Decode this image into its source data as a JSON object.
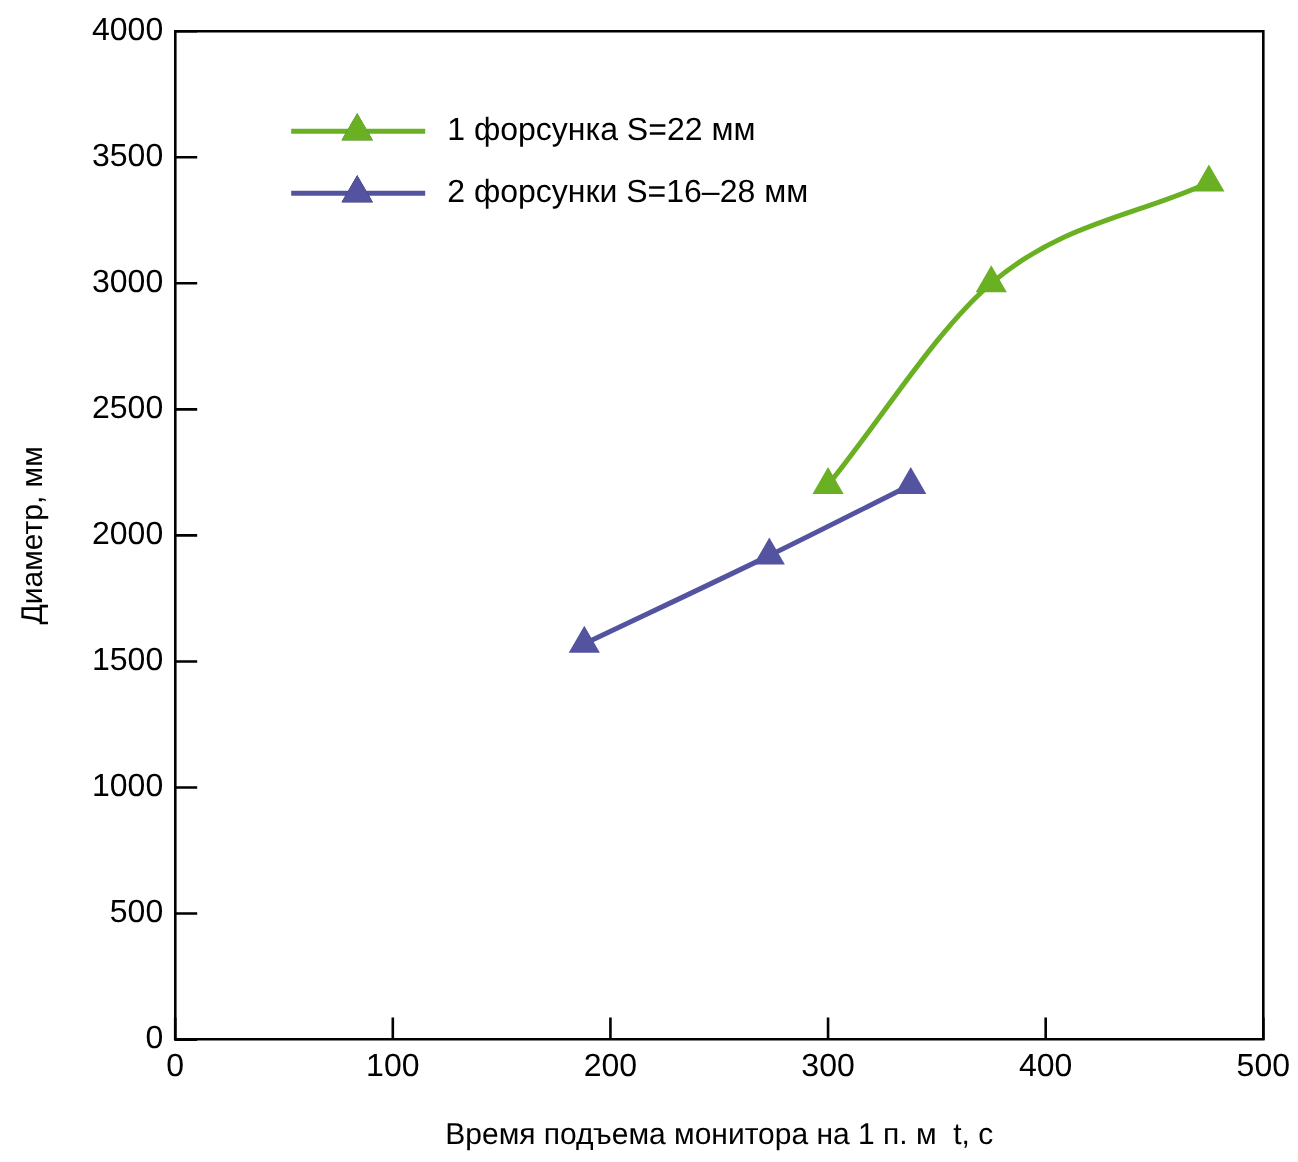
{
  "chart_data": {
    "type": "line",
    "xlabel": "Время подъема монитора на 1 п. м  t, с",
    "ylabel": "Диаметр, мм",
    "xlim": [
      0,
      500
    ],
    "xticks": [
      0,
      100,
      200,
      300,
      400,
      500
    ],
    "ylim": [
      0,
      4000
    ],
    "yticks": [
      0,
      500,
      1000,
      1500,
      2000,
      2500,
      3000,
      3500,
      4000
    ],
    "grid": false,
    "legend": "top left",
    "marker": "triangle",
    "line_style": "solid",
    "series": [
      {
        "name": "1 форсунка S=22 мм",
        "color": "#6ab023",
        "x": [
          300,
          375,
          475
        ],
        "values": [
          2200,
          3000,
          3400
        ]
      },
      {
        "name": "2 форсунки S=16–28 мм",
        "color": "#5353a0",
        "x": [
          188,
          273,
          338
        ],
        "values": [
          1570,
          1920,
          2200
        ]
      }
    ]
  }
}
